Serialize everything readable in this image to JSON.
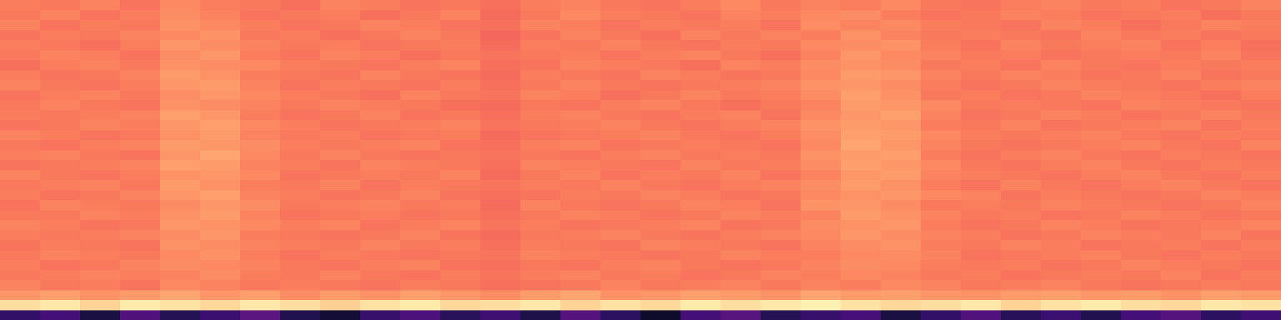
{
  "chart_data": {
    "type": "heatmap",
    "tick_labels": false,
    "zlim": [
      0,
      1
    ],
    "cells": [
      [
        0.73,
        0.72,
        0.74,
        0.71,
        0.75,
        0.73,
        0.72,
        0.7,
        0.74,
        0.73,
        0.71,
        0.72,
        0.7,
        0.73,
        0.74,
        0.72,
        0.71,
        0.73,
        0.75,
        0.72,
        0.74,
        0.73,
        0.75,
        0.72,
        0.71,
        0.73,
        0.74,
        0.72,
        0.73,
        0.71,
        0.72,
        0.74
      ],
      [
        0.72,
        0.74,
        0.71,
        0.73,
        0.76,
        0.74,
        0.71,
        0.72,
        0.73,
        0.7,
        0.72,
        0.74,
        0.69,
        0.72,
        0.75,
        0.73,
        0.72,
        0.71,
        0.74,
        0.73,
        0.75,
        0.76,
        0.73,
        0.71,
        0.72,
        0.74,
        0.73,
        0.71,
        0.72,
        0.73,
        0.7,
        0.72
      ],
      [
        0.74,
        0.71,
        0.73,
        0.72,
        0.77,
        0.75,
        0.73,
        0.71,
        0.72,
        0.74,
        0.73,
        0.71,
        0.7,
        0.74,
        0.73,
        0.71,
        0.73,
        0.72,
        0.73,
        0.71,
        0.76,
        0.74,
        0.75,
        0.73,
        0.72,
        0.71,
        0.74,
        0.73,
        0.7,
        0.72,
        0.74,
        0.73
      ],
      [
        0.71,
        0.73,
        0.72,
        0.74,
        0.75,
        0.77,
        0.72,
        0.73,
        0.7,
        0.72,
        0.74,
        0.72,
        0.68,
        0.71,
        0.74,
        0.72,
        0.7,
        0.74,
        0.72,
        0.74,
        0.73,
        0.77,
        0.74,
        0.72,
        0.73,
        0.72,
        0.71,
        0.74,
        0.72,
        0.73,
        0.71,
        0.72
      ],
      [
        0.73,
        0.72,
        0.7,
        0.73,
        0.78,
        0.76,
        0.74,
        0.72,
        0.73,
        0.71,
        0.72,
        0.73,
        0.69,
        0.73,
        0.72,
        0.74,
        0.72,
        0.71,
        0.73,
        0.72,
        0.75,
        0.76,
        0.77,
        0.73,
        0.71,
        0.74,
        0.72,
        0.73,
        0.74,
        0.71,
        0.73,
        0.7
      ],
      [
        0.72,
        0.74,
        0.73,
        0.71,
        0.76,
        0.78,
        0.73,
        0.71,
        0.74,
        0.73,
        0.7,
        0.72,
        0.71,
        0.72,
        0.73,
        0.71,
        0.73,
        0.74,
        0.72,
        0.7,
        0.74,
        0.78,
        0.75,
        0.74,
        0.72,
        0.73,
        0.71,
        0.72,
        0.73,
        0.72,
        0.74,
        0.71
      ],
      [
        0.7,
        0.73,
        0.74,
        0.72,
        0.77,
        0.76,
        0.75,
        0.73,
        0.72,
        0.71,
        0.73,
        0.74,
        0.7,
        0.71,
        0.74,
        0.73,
        0.72,
        0.7,
        0.74,
        0.73,
        0.76,
        0.77,
        0.76,
        0.72,
        0.73,
        0.71,
        0.74,
        0.72,
        0.71,
        0.73,
        0.72,
        0.73
      ],
      [
        0.73,
        0.71,
        0.72,
        0.74,
        0.79,
        0.77,
        0.73,
        0.72,
        0.71,
        0.74,
        0.72,
        0.71,
        0.69,
        0.73,
        0.72,
        0.71,
        0.74,
        0.73,
        0.71,
        0.72,
        0.75,
        0.79,
        0.78,
        0.74,
        0.72,
        0.74,
        0.73,
        0.71,
        0.72,
        0.74,
        0.71,
        0.72
      ],
      [
        0.74,
        0.72,
        0.71,
        0.73,
        0.78,
        0.79,
        0.74,
        0.71,
        0.73,
        0.72,
        0.71,
        0.73,
        0.7,
        0.72,
        0.74,
        0.72,
        0.71,
        0.72,
        0.73,
        0.74,
        0.77,
        0.78,
        0.76,
        0.73,
        0.71,
        0.72,
        0.74,
        0.73,
        0.72,
        0.71,
        0.73,
        0.74
      ],
      [
        0.71,
        0.73,
        0.74,
        0.72,
        0.76,
        0.78,
        0.75,
        0.73,
        0.72,
        0.7,
        0.74,
        0.72,
        0.71,
        0.74,
        0.73,
        0.7,
        0.72,
        0.74,
        0.72,
        0.73,
        0.76,
        0.8,
        0.77,
        0.72,
        0.73,
        0.71,
        0.72,
        0.74,
        0.73,
        0.72,
        0.7,
        0.73
      ],
      [
        0.72,
        0.74,
        0.72,
        0.71,
        0.77,
        0.76,
        0.74,
        0.72,
        0.74,
        0.73,
        0.72,
        0.7,
        0.69,
        0.72,
        0.71,
        0.73,
        0.74,
        0.72,
        0.7,
        0.72,
        0.74,
        0.79,
        0.78,
        0.75,
        0.72,
        0.73,
        0.72,
        0.71,
        0.74,
        0.73,
        0.72,
        0.71
      ],
      [
        0.73,
        0.72,
        0.73,
        0.74,
        0.8,
        0.78,
        0.73,
        0.71,
        0.72,
        0.74,
        0.71,
        0.72,
        0.7,
        0.73,
        0.74,
        0.72,
        0.71,
        0.73,
        0.74,
        0.71,
        0.75,
        0.78,
        0.8,
        0.74,
        0.71,
        0.72,
        0.74,
        0.73,
        0.71,
        0.72,
        0.74,
        0.72
      ],
      [
        0.71,
        0.72,
        0.74,
        0.73,
        0.78,
        0.8,
        0.75,
        0.73,
        0.71,
        0.72,
        0.73,
        0.74,
        0.71,
        0.72,
        0.73,
        0.74,
        0.72,
        0.71,
        0.73,
        0.74,
        0.77,
        0.79,
        0.78,
        0.73,
        0.72,
        0.74,
        0.71,
        0.72,
        0.73,
        0.74,
        0.71,
        0.73
      ],
      [
        0.74,
        0.73,
        0.71,
        0.72,
        0.77,
        0.79,
        0.74,
        0.72,
        0.73,
        0.71,
        0.72,
        0.73,
        0.69,
        0.71,
        0.72,
        0.73,
        0.74,
        0.72,
        0.71,
        0.73,
        0.76,
        0.8,
        0.79,
        0.75,
        0.73,
        0.72,
        0.73,
        0.74,
        0.72,
        0.71,
        0.73,
        0.72
      ],
      [
        0.72,
        0.71,
        0.73,
        0.74,
        0.79,
        0.78,
        0.76,
        0.73,
        0.72,
        0.73,
        0.74,
        0.71,
        0.7,
        0.73,
        0.74,
        0.71,
        0.72,
        0.73,
        0.72,
        0.71,
        0.75,
        0.81,
        0.78,
        0.74,
        0.72,
        0.71,
        0.72,
        0.73,
        0.74,
        0.72,
        0.71,
        0.74
      ],
      [
        0.73,
        0.74,
        0.72,
        0.71,
        0.78,
        0.81,
        0.75,
        0.72,
        0.74,
        0.72,
        0.71,
        0.72,
        0.71,
        0.72,
        0.71,
        0.73,
        0.74,
        0.72,
        0.73,
        0.72,
        0.77,
        0.79,
        0.8,
        0.73,
        0.71,
        0.73,
        0.74,
        0.72,
        0.71,
        0.73,
        0.72,
        0.71
      ],
      [
        0.71,
        0.72,
        0.73,
        0.74,
        0.8,
        0.79,
        0.74,
        0.73,
        0.71,
        0.74,
        0.73,
        0.72,
        0.7,
        0.74,
        0.73,
        0.72,
        0.71,
        0.74,
        0.72,
        0.73,
        0.76,
        0.8,
        0.78,
        0.75,
        0.72,
        0.71,
        0.73,
        0.74,
        0.72,
        0.71,
        0.73,
        0.72
      ],
      [
        0.74,
        0.72,
        0.71,
        0.73,
        0.77,
        0.78,
        0.75,
        0.71,
        0.72,
        0.73,
        0.72,
        0.74,
        0.69,
        0.72,
        0.74,
        0.71,
        0.73,
        0.72,
        0.74,
        0.71,
        0.74,
        0.78,
        0.79,
        0.74,
        0.73,
        0.72,
        0.71,
        0.73,
        0.74,
        0.72,
        0.71,
        0.73
      ],
      [
        0.72,
        0.73,
        0.74,
        0.72,
        0.79,
        0.77,
        0.73,
        0.72,
        0.74,
        0.71,
        0.73,
        0.72,
        0.71,
        0.73,
        0.72,
        0.74,
        0.72,
        0.71,
        0.73,
        0.74,
        0.76,
        0.79,
        0.77,
        0.73,
        0.71,
        0.74,
        0.72,
        0.71,
        0.73,
        0.74,
        0.72,
        0.71
      ],
      [
        0.73,
        0.71,
        0.72,
        0.74,
        0.78,
        0.8,
        0.74,
        0.73,
        0.71,
        0.72,
        0.74,
        0.71,
        0.7,
        0.71,
        0.73,
        0.72,
        0.74,
        0.73,
        0.71,
        0.72,
        0.75,
        0.77,
        0.78,
        0.75,
        0.74,
        0.71,
        0.73,
        0.72,
        0.71,
        0.72,
        0.74,
        0.73
      ],
      [
        0.71,
        0.74,
        0.73,
        0.72,
        0.76,
        0.78,
        0.76,
        0.72,
        0.73,
        0.74,
        0.72,
        0.73,
        0.69,
        0.74,
        0.72,
        0.71,
        0.72,
        0.74,
        0.73,
        0.71,
        0.77,
        0.78,
        0.76,
        0.72,
        0.73,
        0.72,
        0.74,
        0.73,
        0.72,
        0.71,
        0.72,
        0.74
      ],
      [
        0.72,
        0.72,
        0.74,
        0.73,
        0.77,
        0.79,
        0.74,
        0.71,
        0.72,
        0.73,
        0.71,
        0.72,
        0.7,
        0.72,
        0.74,
        0.73,
        0.71,
        0.72,
        0.74,
        0.73,
        0.74,
        0.79,
        0.77,
        0.74,
        0.72,
        0.73,
        0.71,
        0.72,
        0.74,
        0.73,
        0.71,
        0.72
      ],
      [
        0.74,
        0.73,
        0.71,
        0.72,
        0.78,
        0.77,
        0.75,
        0.73,
        0.74,
        0.71,
        0.73,
        0.74,
        0.71,
        0.73,
        0.71,
        0.72,
        0.73,
        0.74,
        0.71,
        0.72,
        0.76,
        0.77,
        0.78,
        0.73,
        0.71,
        0.72,
        0.74,
        0.73,
        0.71,
        0.72,
        0.73,
        0.74
      ],
      [
        0.73,
        0.72,
        0.73,
        0.74,
        0.76,
        0.78,
        0.73,
        0.72,
        0.71,
        0.72,
        0.74,
        0.71,
        0.69,
        0.72,
        0.73,
        0.74,
        0.72,
        0.71,
        0.73,
        0.74,
        0.75,
        0.78,
        0.76,
        0.74,
        0.73,
        0.71,
        0.72,
        0.74,
        0.73,
        0.72,
        0.74,
        0.71
      ],
      [
        0.71,
        0.73,
        0.72,
        0.71,
        0.77,
        0.76,
        0.74,
        0.73,
        0.72,
        0.74,
        0.72,
        0.73,
        0.7,
        0.73,
        0.72,
        0.71,
        0.74,
        0.73,
        0.72,
        0.71,
        0.74,
        0.76,
        0.77,
        0.73,
        0.72,
        0.74,
        0.73,
        0.71,
        0.72,
        0.73,
        0.71,
        0.73
      ],
      [
        0.72,
        0.74,
        0.73,
        0.72,
        0.75,
        0.77,
        0.73,
        0.71,
        0.73,
        0.72,
        0.71,
        0.72,
        0.71,
        0.74,
        0.73,
        0.72,
        0.71,
        0.72,
        0.74,
        0.73,
        0.73,
        0.75,
        0.76,
        0.74,
        0.71,
        0.72,
        0.73,
        0.74,
        0.72,
        0.71,
        0.73,
        0.72
      ],
      [
        0.73,
        0.71,
        0.72,
        0.74,
        0.76,
        0.75,
        0.74,
        0.72,
        0.71,
        0.73,
        0.74,
        0.71,
        0.7,
        0.72,
        0.71,
        0.73,
        0.74,
        0.72,
        0.71,
        0.72,
        0.74,
        0.76,
        0.75,
        0.73,
        0.72,
        0.73,
        0.71,
        0.72,
        0.74,
        0.73,
        0.72,
        0.71
      ],
      [
        0.72,
        0.73,
        0.74,
        0.73,
        0.74,
        0.76,
        0.73,
        0.72,
        0.74,
        0.72,
        0.71,
        0.73,
        0.71,
        0.73,
        0.74,
        0.72,
        0.73,
        0.71,
        0.72,
        0.74,
        0.73,
        0.75,
        0.74,
        0.72,
        0.73,
        0.71,
        0.72,
        0.73,
        0.72,
        0.74,
        0.71,
        0.73
      ],
      [
        0.74,
        0.72,
        0.73,
        0.71,
        0.75,
        0.74,
        0.72,
        0.73,
        0.72,
        0.71,
        0.73,
        0.72,
        0.7,
        0.71,
        0.72,
        0.74,
        0.72,
        0.73,
        0.74,
        0.72,
        0.74,
        0.73,
        0.75,
        0.74,
        0.72,
        0.73,
        0.74,
        0.72,
        0.71,
        0.72,
        0.73,
        0.72
      ],
      [
        0.78,
        0.8,
        0.77,
        0.79,
        0.81,
        0.78,
        0.8,
        0.76,
        0.79,
        0.77,
        0.8,
        0.78,
        0.76,
        0.79,
        0.81,
        0.77,
        0.78,
        0.8,
        0.79,
        0.77,
        0.81,
        0.79,
        0.8,
        0.78,
        0.77,
        0.79,
        0.8,
        0.78,
        0.79,
        0.77,
        0.8,
        0.79
      ],
      [
        0.93,
        0.95,
        0.91,
        0.96,
        0.94,
        0.92,
        0.95,
        0.93,
        0.9,
        0.94,
        0.96,
        0.92,
        0.93,
        0.95,
        0.91,
        0.94,
        0.92,
        0.96,
        0.93,
        0.95,
        0.97,
        0.94,
        0.92,
        0.93,
        0.95,
        0.91,
        0.94,
        0.96,
        0.93,
        0.92,
        0.95,
        0.94
      ],
      [
        0.18,
        0.22,
        0.12,
        0.25,
        0.15,
        0.2,
        0.28,
        0.14,
        0.1,
        0.19,
        0.24,
        0.16,
        0.21,
        0.13,
        0.26,
        0.17,
        0.08,
        0.22,
        0.27,
        0.15,
        0.19,
        0.23,
        0.12,
        0.18,
        0.25,
        0.16,
        0.2,
        0.14,
        0.22,
        0.26,
        0.17,
        0.21
      ]
    ]
  }
}
